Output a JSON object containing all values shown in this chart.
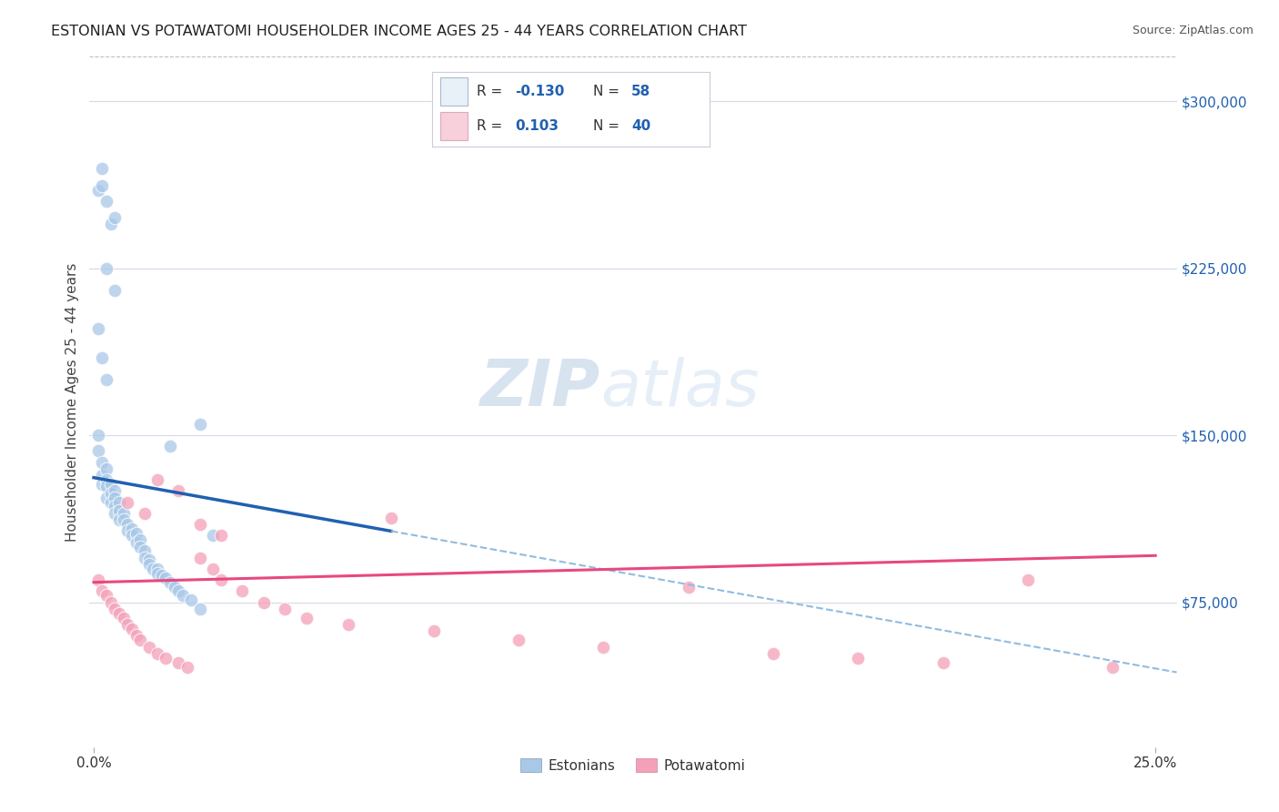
{
  "title": "ESTONIAN VS POTAWATOMI HOUSEHOLDER INCOME AGES 25 - 44 YEARS CORRELATION CHART",
  "source": "Source: ZipAtlas.com",
  "ylabel": "Householder Income Ages 25 - 44 years",
  "ytick_labels": [
    "$75,000",
    "$150,000",
    "$225,000",
    "$300,000"
  ],
  "ytick_values": [
    75000,
    150000,
    225000,
    300000
  ],
  "ylim": [
    10000,
    320000
  ],
  "xlim": [
    -0.001,
    0.255
  ],
  "xtick_positions": [
    0.0,
    0.25
  ],
  "xtick_labels": [
    "0.0%",
    "25.0%"
  ],
  "watermark_zip": "ZIP",
  "watermark_atlas": "atlas",
  "estonian_color": "#a8c8e8",
  "potawatomi_color": "#f4a0b8",
  "estonian_line_color": "#2060b0",
  "potawatomi_line_color": "#e84880",
  "dashed_line_color": "#90bce0",
  "background_color": "#ffffff",
  "grid_color": "#d8d8e8",
  "legend_box_color": "#e8f0f8",
  "legend_pink_color": "#f8d0dc",
  "est_r": "-0.130",
  "est_n": "58",
  "pot_r": "0.103",
  "pot_n": "40",
  "estonian_x": [
    0.001,
    0.001,
    0.002,
    0.002,
    0.002,
    0.003,
    0.003,
    0.003,
    0.003,
    0.004,
    0.004,
    0.004,
    0.005,
    0.005,
    0.005,
    0.005,
    0.006,
    0.006,
    0.006,
    0.007,
    0.007,
    0.008,
    0.008,
    0.009,
    0.009,
    0.01,
    0.01,
    0.011,
    0.011,
    0.012,
    0.012,
    0.013,
    0.013,
    0.014,
    0.015,
    0.015,
    0.016,
    0.017,
    0.018,
    0.019,
    0.02,
    0.021,
    0.023,
    0.025,
    0.028,
    0.001,
    0.002,
    0.002,
    0.003,
    0.004,
    0.005,
    0.003,
    0.005,
    0.001,
    0.002,
    0.003,
    0.025,
    0.018
  ],
  "estonian_y": [
    150000,
    143000,
    138000,
    132000,
    128000,
    135000,
    130000,
    127000,
    122000,
    128000,
    124000,
    120000,
    125000,
    122000,
    118000,
    115000,
    120000,
    116000,
    112000,
    115000,
    112000,
    110000,
    107000,
    108000,
    105000,
    106000,
    102000,
    103000,
    100000,
    98000,
    95000,
    94000,
    92000,
    90000,
    90000,
    88000,
    87000,
    86000,
    84000,
    82000,
    80000,
    78000,
    76000,
    72000,
    105000,
    260000,
    270000,
    262000,
    255000,
    245000,
    248000,
    225000,
    215000,
    198000,
    185000,
    175000,
    155000,
    145000
  ],
  "potawatomi_x": [
    0.001,
    0.002,
    0.003,
    0.004,
    0.005,
    0.006,
    0.007,
    0.008,
    0.009,
    0.01,
    0.011,
    0.013,
    0.015,
    0.017,
    0.02,
    0.022,
    0.025,
    0.028,
    0.03,
    0.035,
    0.04,
    0.045,
    0.05,
    0.06,
    0.07,
    0.08,
    0.1,
    0.12,
    0.14,
    0.16,
    0.18,
    0.2,
    0.22,
    0.24,
    0.015,
    0.02,
    0.008,
    0.012,
    0.025,
    0.03
  ],
  "potawatomi_y": [
    85000,
    80000,
    78000,
    75000,
    72000,
    70000,
    68000,
    65000,
    63000,
    60000,
    58000,
    55000,
    52000,
    50000,
    48000,
    46000,
    95000,
    90000,
    85000,
    80000,
    75000,
    72000,
    68000,
    65000,
    113000,
    62000,
    58000,
    55000,
    82000,
    52000,
    50000,
    48000,
    85000,
    46000,
    130000,
    125000,
    120000,
    115000,
    110000,
    105000
  ]
}
